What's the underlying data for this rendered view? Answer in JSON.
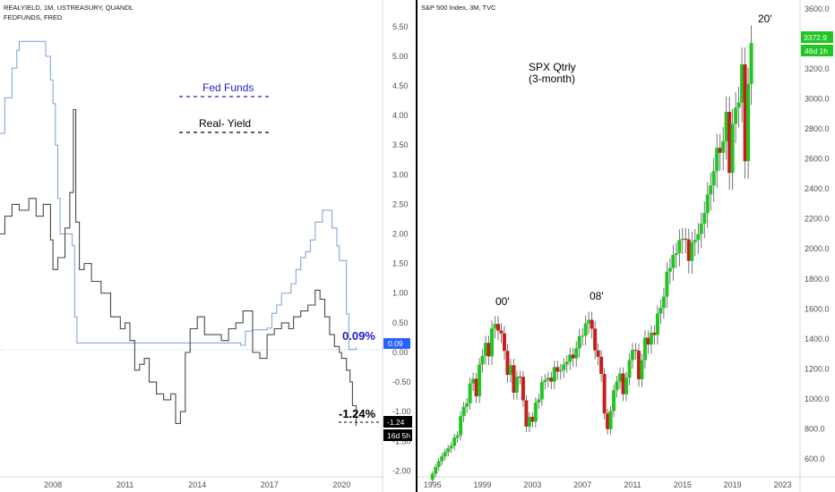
{
  "colors": {
    "fed": "#7b9fd6",
    "real": "#4a4a4a",
    "up": "#22c522",
    "down": "#c81d1d",
    "fed_label": "#1e1ec8",
    "price_tag": "#22c522",
    "fed_tag": "#2962ff"
  },
  "left_panel": {
    "header_line1": "REALYIELD, 1M, USTREASURY, QUANDL",
    "header_line2": "FEDFUNDS, FRED",
    "fed_funds_label": "Fed Funds",
    "real_yield_label": "Real- Yield",
    "fed_value_label": "0.09%",
    "real_value_label": "-1.24%",
    "fed_tag": "0.09",
    "real_tag": "-1.24",
    "countdown_tag": "16d 5h",
    "y_ticks": [
      "5.50",
      "5.00",
      "4.50",
      "4.00",
      "3.50",
      "3.00",
      "2.50",
      "2.00",
      "1.50",
      "1.00",
      "0.50",
      "0.00",
      "-0.50",
      "-1.00",
      "-1.50",
      "-2.00"
    ],
    "x_ticks": [
      "2008",
      "2011",
      "2014",
      "2017",
      "2020"
    ]
  },
  "right_panel": {
    "header": "S&P 500 Index, 3M, TVC",
    "title_line1": "SPX Qtrly",
    "title_line2": "(3-month)",
    "label_00": "00'",
    "label_08": "08'",
    "label_20": "20'",
    "price_tag": "3372.9",
    "countdown_tag": "46d 1h",
    "y_ticks": [
      "3600.0",
      "3400.0",
      "3200.0",
      "3000.0",
      "2800.0",
      "2600.0",
      "2400.0",
      "2200.0",
      "2000.0",
      "1800.0",
      "1600.0",
      "1400.0",
      "1200.0",
      "1000.0",
      "800.0",
      "600.0"
    ],
    "x_ticks": [
      "1995",
      "1999",
      "2003",
      "2007",
      "2011",
      "2015",
      "2019",
      "2023"
    ]
  },
  "chart_data": [
    {
      "type": "line",
      "y_range": [
        -2.1,
        5.95
      ],
      "x_range": [
        2005.8,
        2021.7
      ],
      "series": [
        {
          "name": "Fed Funds",
          "x": [
            2005.8,
            2006.0,
            2006.3,
            2006.5,
            2006.6,
            2007.5,
            2007.7,
            2007.9,
            2008.0,
            2008.1,
            2008.2,
            2008.3,
            2008.8,
            2008.9,
            2009.0,
            2015.8,
            2016.0,
            2016.3,
            2016.9,
            2017.1,
            2017.3,
            2017.5,
            2017.9,
            2018.1,
            2018.3,
            2018.5,
            2018.7,
            2018.9,
            2019.2,
            2019.5,
            2019.6,
            2019.8,
            2019.9,
            2020.0,
            2020.2,
            2020.3,
            2020.6
          ],
          "values": [
            3.7,
            4.3,
            4.8,
            5.1,
            5.25,
            5.25,
            5.0,
            4.6,
            4.2,
            3.5,
            2.6,
            2.0,
            1.8,
            0.6,
            0.16,
            0.12,
            0.36,
            0.38,
            0.41,
            0.66,
            0.8,
            1.0,
            1.16,
            1.4,
            1.6,
            1.7,
            1.9,
            2.2,
            2.4,
            2.4,
            2.1,
            1.8,
            1.55,
            1.55,
            0.65,
            0.05,
            0.09
          ]
        },
        {
          "name": "Real- Yield",
          "x": [
            2005.8,
            2006.0,
            2006.3,
            2006.6,
            2007.0,
            2007.3,
            2007.6,
            2007.9,
            2008.0,
            2008.2,
            2008.5,
            2008.7,
            2008.85,
            2008.95,
            2009.1,
            2009.3,
            2009.6,
            2010.0,
            2010.4,
            2010.8,
            2011.0,
            2011.2,
            2011.4,
            2011.6,
            2011.8,
            2012.0,
            2012.3,
            2012.6,
            2012.9,
            2013.1,
            2013.3,
            2013.5,
            2013.7,
            2014.0,
            2014.3,
            2014.6,
            2015.0,
            2015.3,
            2015.6,
            2015.9,
            2016.3,
            2016.6,
            2016.9,
            2017.2,
            2017.5,
            2017.8,
            2018.0,
            2018.3,
            2018.6,
            2018.9,
            2019.1,
            2019.3,
            2019.5,
            2019.7,
            2019.9,
            2020.0,
            2020.2,
            2020.35,
            2020.45,
            2020.6
          ],
          "values": [
            2.0,
            2.3,
            2.5,
            2.4,
            2.6,
            2.3,
            2.5,
            1.9,
            1.4,
            1.6,
            2.1,
            2.7,
            4.1,
            2.2,
            1.4,
            1.5,
            1.2,
            1.0,
            0.6,
            0.4,
            0.5,
            0.2,
            -0.3,
            -0.2,
            -0.1,
            -0.5,
            -0.7,
            -0.8,
            -0.7,
            -1.2,
            -1.0,
            0.0,
            0.4,
            0.6,
            0.3,
            0.3,
            0.2,
            0.4,
            0.5,
            0.7,
            0.0,
            -0.1,
            0.3,
            0.4,
            0.5,
            0.4,
            0.6,
            0.7,
            0.8,
            1.05,
            0.9,
            0.6,
            0.3,
            0.1,
            0.0,
            -0.1,
            -0.3,
            -0.5,
            -0.9,
            -1.24
          ]
        }
      ]
    },
    {
      "type": "candlestick",
      "y_range": [
        480,
        3660
      ],
      "x_range": [
        1993.8,
        2024.4
      ],
      "series": [
        {
          "name": "S&P 500 Index",
          "t": [
            1995.0,
            1995.25,
            1995.5,
            1995.75,
            1996.0,
            1996.25,
            1996.5,
            1996.75,
            1997.0,
            1997.25,
            1997.5,
            1997.75,
            1998.0,
            1998.25,
            1998.5,
            1998.75,
            1999.0,
            1999.25,
            1999.5,
            1999.75,
            2000.0,
            2000.25,
            2000.5,
            2000.75,
            2001.0,
            2001.25,
            2001.5,
            2001.75,
            2002.0,
            2002.25,
            2002.5,
            2002.75,
            2003.0,
            2003.25,
            2003.5,
            2003.75,
            2004.0,
            2004.25,
            2004.5,
            2004.75,
            2005.0,
            2005.25,
            2005.5,
            2005.75,
            2006.0,
            2006.25,
            2006.5,
            2006.75,
            2007.0,
            2007.25,
            2007.5,
            2007.75,
            2008.0,
            2008.25,
            2008.5,
            2008.75,
            2009.0,
            2009.25,
            2009.5,
            2009.75,
            2010.0,
            2010.25,
            2010.5,
            2010.75,
            2011.0,
            2011.25,
            2011.5,
            2011.75,
            2012.0,
            2012.25,
            2012.5,
            2012.75,
            2013.0,
            2013.25,
            2013.5,
            2013.75,
            2014.0,
            2014.25,
            2014.5,
            2014.75,
            2015.0,
            2015.25,
            2015.5,
            2015.75,
            2016.0,
            2016.25,
            2016.5,
            2016.75,
            2017.0,
            2017.25,
            2017.5,
            2017.75,
            2018.0,
            2018.25,
            2018.5,
            2018.75,
            2019.0,
            2019.25,
            2019.5,
            2019.75,
            2020.0,
            2020.25,
            2020.5
          ],
          "close": [
            500,
            545,
            584,
            616,
            645,
            670,
            687,
            741,
            757,
            885,
            947,
            970,
            1102,
            1134,
            1017,
            1229,
            1286,
            1373,
            1283,
            1469,
            1499,
            1455,
            1436,
            1320,
            1160,
            1224,
            1041,
            1148,
            1147,
            990,
            815,
            880,
            848,
            975,
            996,
            1112,
            1126,
            1141,
            1115,
            1212,
            1181,
            1191,
            1229,
            1248,
            1295,
            1270,
            1336,
            1418,
            1421,
            1503,
            1527,
            1468,
            1323,
            1280,
            1166,
            903,
            798,
            919,
            1057,
            1115,
            1169,
            1031,
            1141,
            1258,
            1326,
            1321,
            1131,
            1258,
            1408,
            1362,
            1441,
            1426,
            1569,
            1606,
            1682,
            1848,
            1872,
            1960,
            1972,
            2059,
            2068,
            2063,
            1920,
            2044,
            2060,
            2099,
            2168,
            2239,
            2363,
            2423,
            2519,
            2674,
            2641,
            2718,
            2914,
            2507,
            2834,
            2942,
            2977,
            3231,
            2585,
            3100,
            3373
          ]
        }
      ]
    }
  ]
}
